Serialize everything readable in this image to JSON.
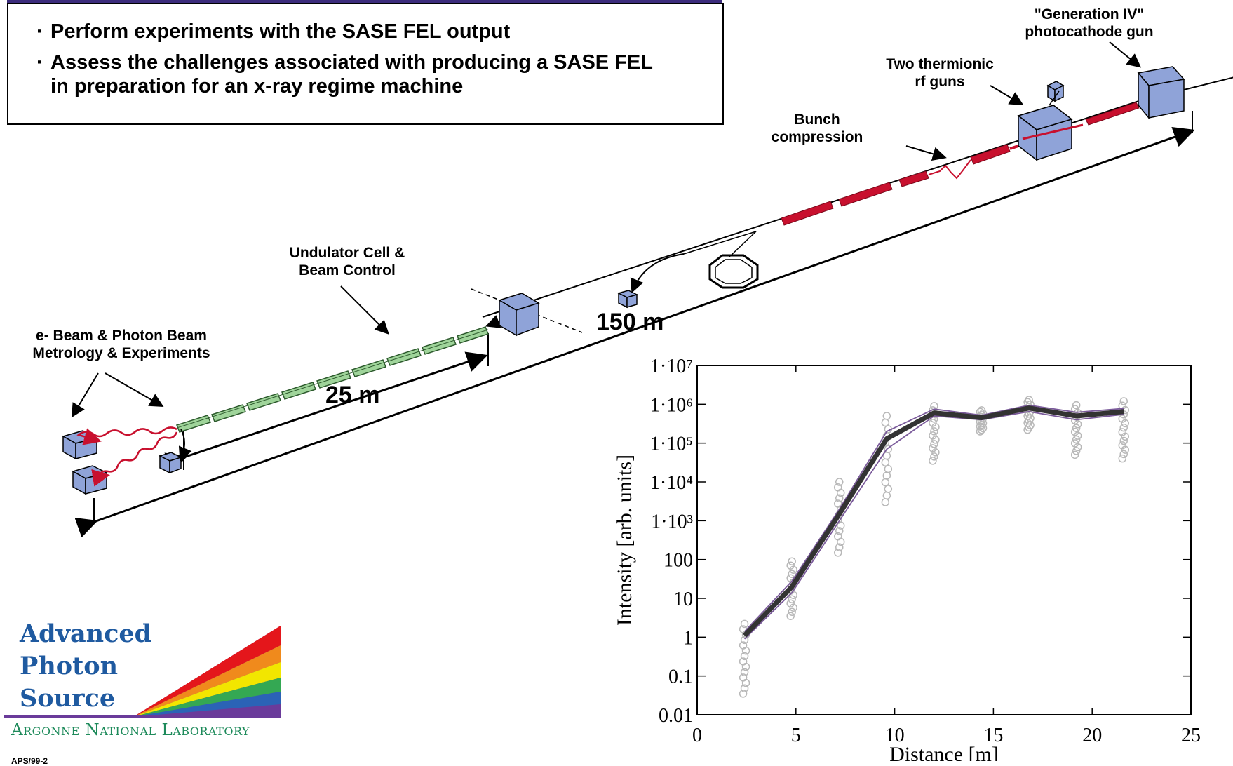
{
  "objectives": {
    "bullet1": "Perform experiments with the SASE FEL output",
    "bullet2_line1": "Assess the challenges associated with producing a SASE FEL",
    "bullet2_line2": "in preparation for an x-ray regime machine"
  },
  "labels": {
    "gen4_line1": "\"Generation IV\"",
    "gen4_line2": "photocathode gun",
    "thermionic_line1": "Two thermionic",
    "thermionic_line2": "rf guns",
    "bunch_line1": "Bunch",
    "bunch_line2": "compression",
    "undulator_line1": "Undulator Cell &",
    "undulator_line2": "Beam Control",
    "ebeam_line1": "e- Beam & Photon Beam",
    "ebeam_line2": "Metrology & Experiments",
    "dist_150": "150 m",
    "dist_25": "25 m"
  },
  "logo": {
    "line1": "Advanced",
    "line2": "Photon",
    "line3": "Source",
    "lab": "Argonne National Laboratory",
    "slide_id": "APS/99-2"
  },
  "colors": {
    "component_blue": "#8fa3d8",
    "linac_red": "#c8102e",
    "undulator_green": "#9fd49a",
    "logo_blue": "#1f5aa0",
    "anl_green": "#1d8a5a"
  },
  "chart_data": {
    "type": "line",
    "xlabel": "Distance [m]",
    "ylabel": "Intensity [arb. units]",
    "xlim": [
      0,
      25
    ],
    "ylim": [
      0.01,
      10000000
    ],
    "yscale": "log",
    "x_ticks": [
      "0",
      "5",
      "10",
      "15",
      "20",
      "25"
    ],
    "y_ticks": [
      "0.01",
      "0.1",
      "1",
      "10",
      "100",
      "1·10³",
      "1·10⁴",
      "1·10⁵",
      "1·10⁶",
      "1·10⁷"
    ],
    "x": [
      2.4,
      4.8,
      7.2,
      9.6,
      12.0,
      14.4,
      16.8,
      19.2,
      21.6
    ],
    "series": [
      {
        "values": [
          1.1,
          20,
          1500,
          130000,
          600000,
          450000,
          800000,
          500000,
          650000
        ]
      },
      {
        "values": [
          1.4,
          28,
          2000,
          200000,
          750000,
          520000,
          950000,
          620000,
          780000
        ]
      },
      {
        "values": [
          0.9,
          14,
          1000,
          70000,
          500000,
          400000,
          650000,
          400000,
          550000
        ]
      }
    ],
    "scatter_ranges": [
      {
        "x": 2.4,
        "low": 0.035,
        "high": 2.2
      },
      {
        "x": 4.8,
        "low": 3.5,
        "high": 90
      },
      {
        "x": 7.2,
        "low": 150,
        "high": 10000
      },
      {
        "x": 9.6,
        "low": 3000,
        "high": 500000
      },
      {
        "x": 12.0,
        "low": 35000,
        "high": 900000
      },
      {
        "x": 14.4,
        "low": 200000,
        "high": 700000
      },
      {
        "x": 16.8,
        "low": 220000,
        "high": 1300000
      },
      {
        "x": 19.2,
        "low": 50000,
        "high": 950000
      },
      {
        "x": 21.6,
        "low": 40000,
        "high": 1200000
      }
    ],
    "grid": false
  }
}
